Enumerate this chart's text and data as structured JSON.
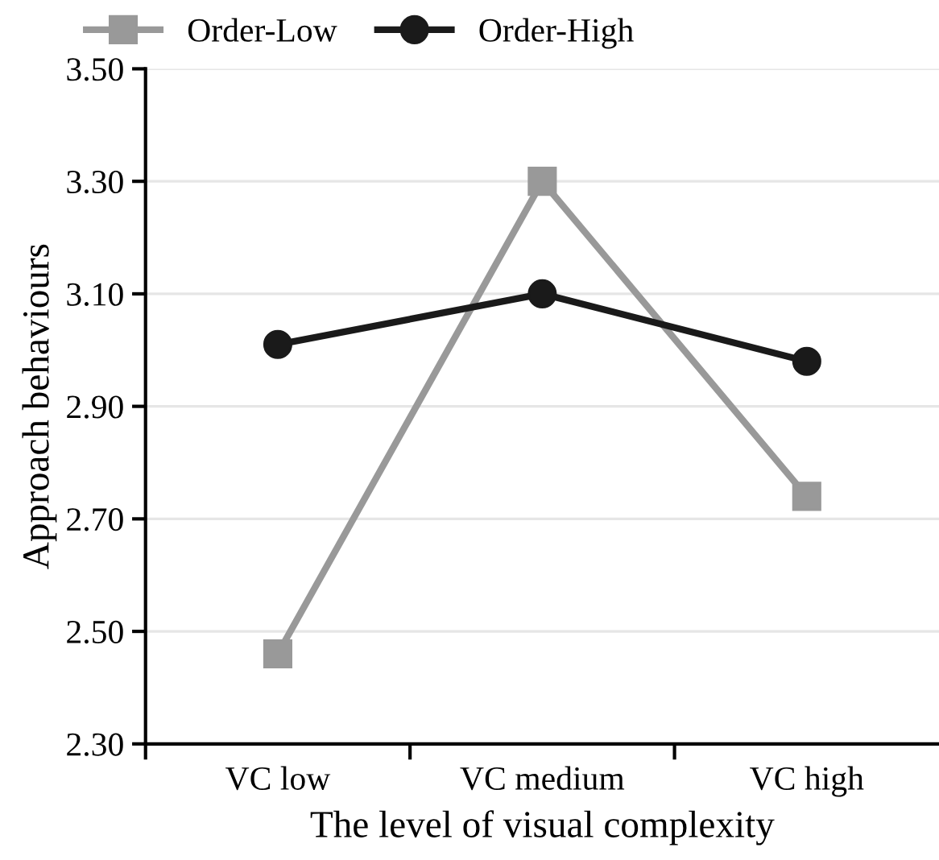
{
  "chart_data": {
    "type": "line",
    "xlabel": "The level of visual complexity",
    "ylabel": "Approach behaviours",
    "categories": [
      "VC low",
      "VC medium",
      "VC high"
    ],
    "series": [
      {
        "name": "Order-Low",
        "color": "#999999",
        "values": [
          2.46,
          3.3,
          2.74
        ],
        "marker": "square"
      },
      {
        "name": "Order-High",
        "color": "#1a1a1a",
        "values": [
          3.01,
          3.1,
          2.98
        ],
        "marker": "circle"
      }
    ],
    "ylim": [
      2.3,
      3.5
    ],
    "yticks": [
      {
        "value": 2.3,
        "label": "2.30"
      },
      {
        "value": 2.5,
        "label": "2.50"
      },
      {
        "value": 2.7,
        "label": "2.70"
      },
      {
        "value": 2.9,
        "label": "2.90"
      },
      {
        "value": 3.1,
        "label": "3.10"
      },
      {
        "value": 3.3,
        "label": "3.30"
      },
      {
        "value": 3.5,
        "label": "3.50"
      }
    ],
    "grid": "y",
    "legend": "top left",
    "line_style": "solid"
  }
}
